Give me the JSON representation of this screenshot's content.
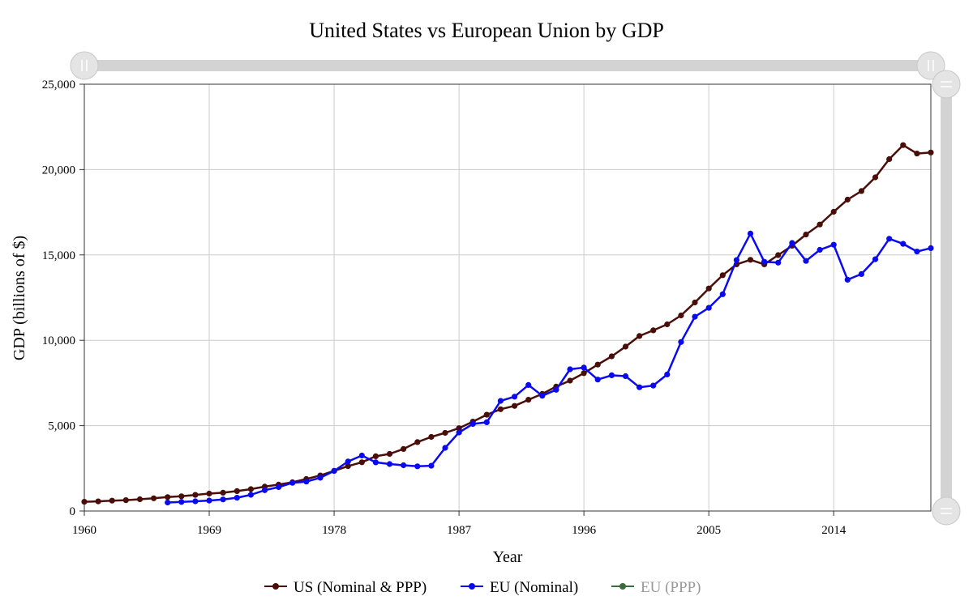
{
  "chart_data": {
    "type": "line",
    "title": "United States vs European Union by GDP",
    "xlabel": "Year",
    "ylabel": "GDP (billions of $)",
    "xlim": [
      1960,
      2021
    ],
    "ylim": [
      0,
      25000
    ],
    "x_ticks": [
      "1960",
      "1969",
      "1978",
      "1987",
      "1996",
      "2005",
      "2014"
    ],
    "y_ticks": [
      "0",
      "5,000",
      "10,000",
      "15,000",
      "20,000",
      "25,000"
    ],
    "grid": true,
    "legend": "bottom",
    "range_slider": true,
    "series": [
      {
        "name": "US (Nominal & PPP)",
        "color": "#4a0e08",
        "hidden": false,
        "x": [
          1960,
          1961,
          1962,
          1963,
          1964,
          1965,
          1966,
          1967,
          1968,
          1969,
          1970,
          1971,
          1972,
          1973,
          1974,
          1975,
          1976,
          1977,
          1978,
          1979,
          1980,
          1981,
          1982,
          1983,
          1984,
          1985,
          1986,
          1987,
          1988,
          1989,
          1990,
          1991,
          1992,
          1993,
          1994,
          1995,
          1996,
          1997,
          1998,
          1999,
          2000,
          2001,
          2002,
          2003,
          2004,
          2005,
          2006,
          2007,
          2008,
          2009,
          2010,
          2011,
          2012,
          2013,
          2014,
          2015,
          2016,
          2017,
          2018,
          2019,
          2020,
          2021
        ],
        "values": [
          543,
          563,
          605,
          638,
          686,
          744,
          815,
          862,
          943,
          1020,
          1073,
          1165,
          1280,
          1428,
          1545,
          1684,
          1873,
          2082,
          2352,
          2627,
          2857,
          3207,
          3343,
          3634,
          4037,
          4339,
          4579,
          4855,
          5236,
          5641,
          5963,
          6158,
          6520,
          6858,
          7287,
          7639,
          8073,
          8577,
          9063,
          9631,
          10251,
          10582,
          10936,
          11458,
          12214,
          13037,
          13815,
          14452,
          14713,
          14449,
          14992,
          15543,
          16197,
          16785,
          17527,
          18238,
          18745,
          19543,
          20612,
          21433,
          20937,
          21000
        ]
      },
      {
        "name": "EU (Nominal)",
        "color": "#0a0aee",
        "hidden": false,
        "x": [
          1966,
          1967,
          1968,
          1969,
          1970,
          1971,
          1972,
          1973,
          1974,
          1975,
          1976,
          1977,
          1978,
          1979,
          1980,
          1981,
          1982,
          1983,
          1984,
          1985,
          1986,
          1987,
          1988,
          1989,
          1990,
          1991,
          1992,
          1993,
          1994,
          1995,
          1996,
          1997,
          1998,
          1999,
          2000,
          2001,
          2002,
          2003,
          2004,
          2005,
          2006,
          2007,
          2008,
          2009,
          2010,
          2011,
          2012,
          2013,
          2014,
          2015,
          2016,
          2017,
          2018,
          2019,
          2020,
          2021
        ],
        "values": [
          500,
          530,
          570,
          610,
          680,
          780,
          950,
          1220,
          1400,
          1650,
          1720,
          1950,
          2350,
          2900,
          3250,
          2850,
          2750,
          2680,
          2620,
          2650,
          3700,
          4600,
          5100,
          5200,
          6450,
          6700,
          7380,
          6750,
          7100,
          8300,
          8400,
          7700,
          7950,
          7900,
          7250,
          7350,
          8000,
          9900,
          11380,
          11900,
          12700,
          14700,
          16250,
          14600,
          14550,
          15700,
          14650,
          15300,
          15600,
          13550,
          13880,
          14750,
          15950,
          15650,
          15200,
          15400
        ]
      },
      {
        "name": "EU (PPP)",
        "color": "#2e6b32",
        "hidden": true,
        "x": [],
        "values": []
      }
    ]
  }
}
